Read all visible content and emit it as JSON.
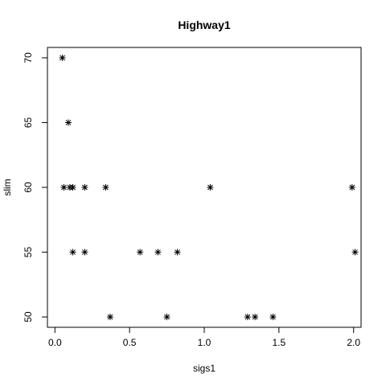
{
  "chart_data": {
    "type": "scatter",
    "title": "Highway1",
    "xlabel": "sigs1",
    "ylabel": "slim",
    "xlim": [
      -0.05,
      2.05
    ],
    "ylim": [
      49.2,
      70.8
    ],
    "x_ticks": [
      0,
      0.5,
      1,
      1.5,
      2
    ],
    "x_tick_labels": [
      "0.0",
      "0.5",
      "1.0",
      "1.5",
      "2.0"
    ],
    "y_ticks": [
      50,
      55,
      60,
      65,
      70
    ],
    "y_tick_labels": [
      "50",
      "55",
      "60",
      "65",
      "70"
    ],
    "grid": false,
    "marker": "asterisk",
    "color": "#000000",
    "points": [
      {
        "x": 0.05,
        "y": 70
      },
      {
        "x": 0.09,
        "y": 65
      },
      {
        "x": 0.06,
        "y": 60
      },
      {
        "x": 0.1,
        "y": 60
      },
      {
        "x": 0.12,
        "y": 60
      },
      {
        "x": 0.2,
        "y": 60
      },
      {
        "x": 0.34,
        "y": 60
      },
      {
        "x": 1.04,
        "y": 60
      },
      {
        "x": 1.99,
        "y": 60
      },
      {
        "x": 0.12,
        "y": 55
      },
      {
        "x": 0.2,
        "y": 55
      },
      {
        "x": 0.57,
        "y": 55
      },
      {
        "x": 0.69,
        "y": 55
      },
      {
        "x": 0.82,
        "y": 55
      },
      {
        "x": 2.01,
        "y": 55
      },
      {
        "x": 0.37,
        "y": 50
      },
      {
        "x": 0.75,
        "y": 50
      },
      {
        "x": 1.29,
        "y": 50
      },
      {
        "x": 1.34,
        "y": 50
      },
      {
        "x": 1.46,
        "y": 50
      }
    ]
  }
}
